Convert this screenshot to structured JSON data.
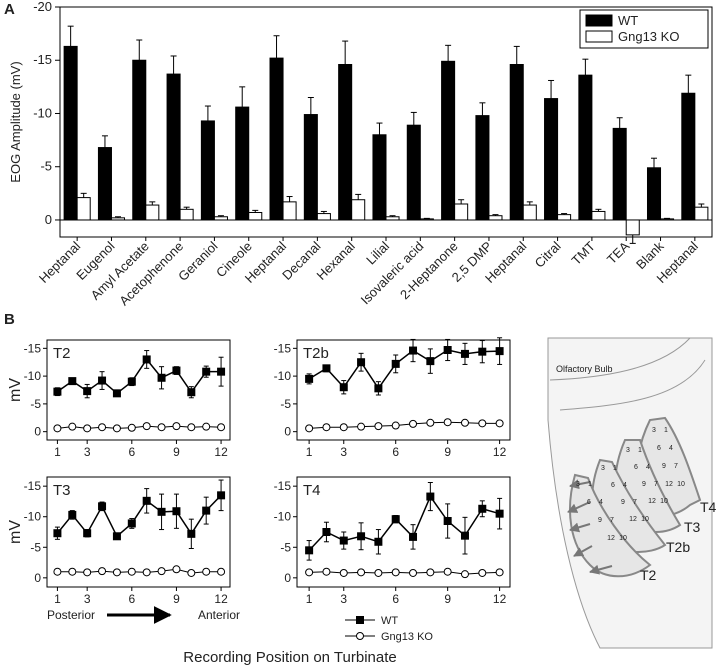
{
  "figure": {
    "panel_labels": [
      "A",
      "B"
    ],
    "x_label": "Recording Position on Turbinate"
  },
  "chart_data": [
    {
      "type": "bar",
      "y_label": "EOG Amplitude (mV)",
      "categories": [
        "Heptanal",
        "Eugenol",
        "Amyl Acetate",
        "Acetophenone",
        "Geraniol",
        "Cineole",
        "Heptanal",
        "Decanal",
        "Hexanal",
        "Lilial",
        "Isovaleric acid",
        "2-Heptanone",
        "2,5 DMP",
        "Heptanal",
        "Citral",
        "TMT",
        "TEA",
        "Blank",
        "Heptanal"
      ],
      "series": [
        {
          "name": "WT",
          "color": "#000000",
          "values": [
            -16.3,
            -6.8,
            -15.0,
            -13.7,
            -9.3,
            -10.6,
            -15.2,
            -9.9,
            -14.6,
            -8.0,
            -8.9,
            -14.9,
            -9.8,
            -14.6,
            -11.4,
            -13.6,
            -8.6,
            -4.9,
            -11.9
          ],
          "errors": [
            1.9,
            1.1,
            1.9,
            1.7,
            1.4,
            1.9,
            2.1,
            1.6,
            2.2,
            1.1,
            1.2,
            1.5,
            1.2,
            1.7,
            1.7,
            1.5,
            1.0,
            0.9,
            1.7
          ]
        },
        {
          "name": "Gng13 KO",
          "color": "#ffffff",
          "values": [
            -2.1,
            -0.2,
            -1.4,
            -1.0,
            -0.3,
            -0.7,
            -1.7,
            -0.6,
            -1.9,
            -0.3,
            -0.1,
            -1.5,
            -0.4,
            -1.4,
            -0.5,
            -0.8,
            1.4,
            -0.1,
            -1.2
          ],
          "errors": [
            0.4,
            0.1,
            0.3,
            0.2,
            0.1,
            0.2,
            0.5,
            0.2,
            0.5,
            0.1,
            0.05,
            0.4,
            0.1,
            0.3,
            0.1,
            0.2,
            0.8,
            0.05,
            0.3
          ]
        }
      ],
      "ylim": [
        1.6,
        -20
      ],
      "yticks": [
        -20,
        -15,
        -10,
        -5,
        0
      ],
      "legend": "upper right"
    },
    {
      "type": "line",
      "title": "T2",
      "y_label": "mV",
      "x": [
        1,
        2,
        3,
        4,
        5,
        6,
        7,
        8,
        9,
        10,
        11,
        12
      ],
      "series": [
        {
          "name": "WT",
          "color": "#000000",
          "values": [
            -7.2,
            -9.1,
            -7.3,
            -9.2,
            -6.9,
            -9.0,
            -13.0,
            -9.7,
            -11.0,
            -7.1,
            -10.8,
            -10.8
          ],
          "errors": [
            0.7,
            0.5,
            1.2,
            1.6,
            0.4,
            0.7,
            1.6,
            2.0,
            0.7,
            1.0,
            1.0,
            2.6
          ]
        },
        {
          "name": "Gng13 KO",
          "color": "#ffffff",
          "values": [
            -0.6,
            -0.9,
            -0.6,
            -0.8,
            -0.6,
            -0.7,
            -1.0,
            -0.8,
            -1.0,
            -0.8,
            -0.9,
            -0.8
          ],
          "errors": [
            0.3,
            0.3,
            0.3,
            0.3,
            0.3,
            0.3,
            0.3,
            0.3,
            0.3,
            0.3,
            0.3,
            0.3
          ]
        }
      ],
      "xlim": [
        0.3,
        12.6
      ],
      "xticks": [
        1,
        3,
        6,
        9,
        12
      ],
      "ylim": [
        1.5,
        -16.5
      ],
      "yticks": [
        0,
        -5,
        -10,
        -15
      ]
    },
    {
      "type": "line",
      "title": "T2b",
      "x": [
        1,
        2,
        3,
        4,
        5,
        6,
        7,
        8,
        9,
        10,
        11,
        12
      ],
      "series": [
        {
          "name": "WT",
          "color": "#000000",
          "values": [
            -9.5,
            -11.4,
            -8.0,
            -12.5,
            -7.8,
            -12.2,
            -14.6,
            -12.7,
            -14.7,
            -14.0,
            -14.4,
            -14.5
          ],
          "errors": [
            0.9,
            0.6,
            1.2,
            1.6,
            1.2,
            1.6,
            2.0,
            2.2,
            1.9,
            1.9,
            2.0,
            2.4
          ]
        },
        {
          "name": "Gng13 KO",
          "color": "#ffffff",
          "values": [
            -0.6,
            -0.8,
            -0.8,
            -0.9,
            -1.0,
            -1.1,
            -1.4,
            -1.6,
            -1.7,
            -1.6,
            -1.5,
            -1.5
          ],
          "errors": [
            0.3,
            0.3,
            0.3,
            0.3,
            0.3,
            0.3,
            0.3,
            0.3,
            0.3,
            0.3,
            0.3,
            0.3
          ]
        }
      ],
      "xlim": [
        0.3,
        12.6
      ],
      "xticks": [
        1,
        3,
        6,
        9,
        12
      ],
      "ylim": [
        1.5,
        -16.5
      ],
      "yticks": [
        0,
        -5,
        -10,
        -15
      ]
    },
    {
      "type": "line",
      "title": "T3",
      "y_label": "mV",
      "x": [
        1,
        2,
        3,
        4,
        5,
        6,
        7,
        8,
        9,
        10,
        11,
        12
      ],
      "series": [
        {
          "name": "WT",
          "color": "#000000",
          "values": [
            -7.3,
            -10.3,
            -7.3,
            -11.7,
            -6.8,
            -8.9,
            -12.6,
            -10.8,
            -10.9,
            -7.2,
            -11.0,
            -13.5
          ],
          "errors": [
            1.0,
            0.7,
            0.6,
            0.7,
            0.5,
            0.8,
            2.0,
            2.9,
            2.8,
            2.4,
            2.2,
            2.5
          ]
        },
        {
          "name": "Gng13 KO",
          "color": "#ffffff",
          "values": [
            -1.0,
            -1.0,
            -0.9,
            -1.1,
            -0.9,
            -1.0,
            -0.9,
            -1.1,
            -1.4,
            -0.8,
            -1.0,
            -1.0
          ],
          "errors": [
            0.3,
            0.3,
            0.3,
            0.3,
            0.3,
            0.3,
            0.3,
            0.3,
            0.3,
            0.3,
            0.3,
            0.3
          ]
        }
      ],
      "xlim": [
        0.3,
        12.6
      ],
      "xticks": [
        1,
        3,
        6,
        9,
        12
      ],
      "ylim": [
        1.5,
        -16.5
      ],
      "yticks": [
        0,
        -5,
        -10,
        -15
      ],
      "annotations": [
        "Posterior",
        "Anterior"
      ]
    },
    {
      "type": "line",
      "title": "T4",
      "x": [
        1,
        2,
        3,
        4,
        5,
        6,
        7,
        8,
        9,
        10,
        11,
        12
      ],
      "series": [
        {
          "name": "WT",
          "color": "#000000",
          "values": [
            -4.5,
            -7.5,
            -6.1,
            -6.8,
            -5.9,
            -9.6,
            -6.7,
            -13.3,
            -9.3,
            -6.9,
            -11.3,
            -10.5
          ],
          "errors": [
            1.6,
            1.6,
            1.4,
            2.2,
            2.0,
            0.6,
            2.0,
            2.3,
            2.8,
            3.0,
            1.3,
            2.5
          ]
        },
        {
          "name": "Gng13 KO",
          "color": "#ffffff",
          "values": [
            -0.9,
            -1.0,
            -0.8,
            -0.9,
            -0.8,
            -0.9,
            -0.8,
            -0.9,
            -1.0,
            -0.6,
            -0.8,
            -0.9
          ],
          "errors": [
            0.3,
            0.3,
            0.3,
            0.3,
            0.3,
            0.3,
            0.3,
            0.3,
            0.3,
            0.3,
            0.3,
            0.3
          ]
        }
      ],
      "xlim": [
        0.3,
        12.6
      ],
      "xticks": [
        1,
        3,
        6,
        9,
        12
      ],
      "ylim": [
        1.5,
        -16.5
      ],
      "yticks": [
        0,
        -5,
        -10,
        -15
      ]
    }
  ],
  "diagram": {
    "bulb_label": "Olfactory Bulb",
    "turbinates": [
      {
        "label": "T4",
        "positions": [
          "3",
          "1",
          "6",
          "4",
          "9",
          "7",
          "12",
          "10"
        ]
      },
      {
        "label": "T3",
        "positions": [
          "3",
          "1",
          "6",
          "4",
          "9",
          "7",
          "12",
          "10"
        ]
      },
      {
        "label": "T2b",
        "positions": [
          "3",
          "1",
          "6",
          "4",
          "9",
          "7",
          "12",
          "10"
        ]
      },
      {
        "label": "T2",
        "positions": [
          "3",
          "1",
          "6",
          "4",
          "9",
          "7",
          "12",
          "10"
        ]
      }
    ]
  }
}
